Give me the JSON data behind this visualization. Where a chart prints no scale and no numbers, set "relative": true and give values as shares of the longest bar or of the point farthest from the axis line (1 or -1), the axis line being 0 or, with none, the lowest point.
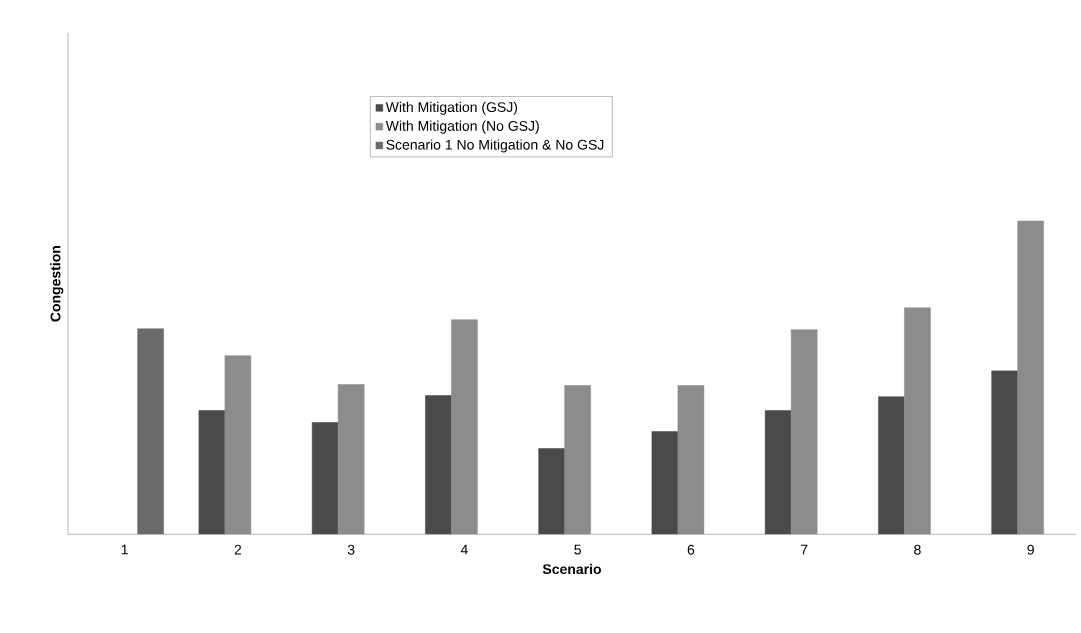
{
  "chart_data": {
    "type": "bar",
    "xlabel": "Scenario",
    "ylabel": "Congestion",
    "categories": [
      "1",
      "2",
      "3",
      "4",
      "5",
      "6",
      "7",
      "8",
      "9"
    ],
    "relative": true,
    "series": [
      {
        "name": "With Mitigation (GSJ)",
        "color": "#4a4a4a",
        "values": [
          null,
          0.395,
          0.357,
          0.443,
          0.274,
          0.328,
          0.395,
          0.439,
          0.522
        ]
      },
      {
        "name": "With Mitigation (No GSJ)",
        "color": "#8c8c8c",
        "values": [
          null,
          0.57,
          0.478,
          0.685,
          0.475,
          0.475,
          0.653,
          0.723,
          1
        ]
      },
      {
        "name": "Scenario 1 No Mitigation & No GSJ",
        "color": "#6a6a6a",
        "values": [
          0.656,
          null,
          null,
          null,
          null,
          null,
          null,
          null,
          null
        ]
      }
    ],
    "legend": "top"
  }
}
